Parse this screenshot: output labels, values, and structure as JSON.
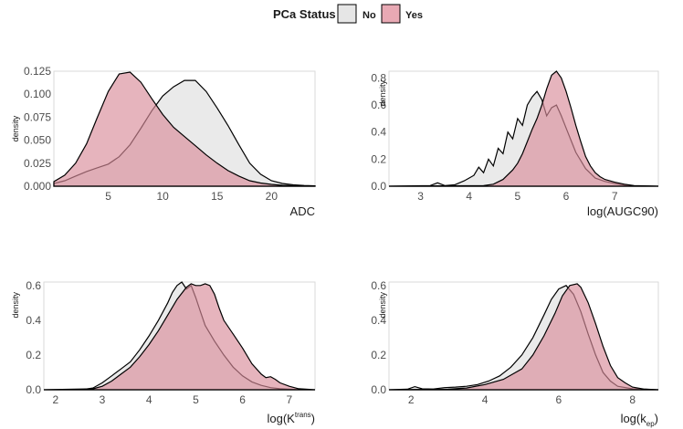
{
  "legend": {
    "title": "PCa Status",
    "items": [
      {
        "label": "No",
        "color": "#e6e6e6"
      },
      {
        "label": "Yes",
        "color": "#e8a9b4"
      }
    ]
  },
  "colors": {
    "no_fill": "#e6e6e6",
    "yes_fill": "#d98c9a",
    "stroke": "#000000",
    "panel_border": "#d9d9d9"
  },
  "chart_data": [
    {
      "type": "area",
      "xlabel": "ADC",
      "ylabel": "density",
      "xlim": [
        0,
        24
      ],
      "ylim": [
        0,
        0.125
      ],
      "xticks": [
        "5",
        "10",
        "15",
        "20"
      ],
      "xtick_values": [
        5,
        10,
        15,
        20
      ],
      "yticks": [
        "0.000",
        "0.025",
        "0.050",
        "0.075",
        "0.100",
        "0.125"
      ],
      "ytick_values": [
        0,
        0.025,
        0.05,
        0.075,
        0.1,
        0.125
      ],
      "series": [
        {
          "name": "No",
          "x": [
            0,
            1,
            2,
            3,
            4,
            5,
            6,
            7,
            8,
            9,
            10,
            11,
            12,
            13,
            14,
            15,
            16,
            17,
            18,
            19,
            20,
            21,
            22,
            23,
            24
          ],
          "y": [
            0.003,
            0.006,
            0.011,
            0.016,
            0.02,
            0.024,
            0.032,
            0.045,
            0.063,
            0.082,
            0.098,
            0.108,
            0.115,
            0.115,
            0.103,
            0.085,
            0.066,
            0.045,
            0.025,
            0.013,
            0.006,
            0.003,
            0.0015,
            0.0008,
            0.0004
          ]
        },
        {
          "name": "Yes",
          "x": [
            0,
            1,
            2,
            3,
            4,
            5,
            6,
            7,
            8,
            9,
            10,
            11,
            12,
            13,
            14,
            15,
            16,
            17,
            18,
            19,
            20,
            21,
            22,
            23,
            24
          ],
          "y": [
            0.005,
            0.012,
            0.025,
            0.046,
            0.075,
            0.103,
            0.122,
            0.124,
            0.113,
            0.095,
            0.078,
            0.064,
            0.054,
            0.044,
            0.034,
            0.025,
            0.017,
            0.011,
            0.006,
            0.0035,
            0.002,
            0.001,
            0.0005,
            0.0002,
            0.0001
          ]
        }
      ]
    },
    {
      "type": "area",
      "xlabel": "log(AUGC90)",
      "ylabel": "density",
      "xlim": [
        2.35,
        7.9
      ],
      "ylim": [
        0,
        0.85
      ],
      "xticks": [
        "3",
        "4",
        "5",
        "6",
        "7"
      ],
      "xtick_values": [
        3,
        4,
        5,
        6,
        7
      ],
      "yticks": [
        "0.0",
        "0.2",
        "0.4",
        "0.6",
        "0.8"
      ],
      "ytick_values": [
        0,
        0.2,
        0.4,
        0.6,
        0.8
      ],
      "series": [
        {
          "name": "No",
          "x": [
            2.35,
            3.2,
            3.35,
            3.5,
            3.7,
            3.9,
            4.0,
            4.1,
            4.2,
            4.3,
            4.4,
            4.5,
            4.6,
            4.7,
            4.8,
            4.9,
            5.0,
            5.1,
            5.2,
            5.3,
            5.4,
            5.5,
            5.6,
            5.7,
            5.8,
            5.9,
            6.0,
            6.1,
            6.2,
            6.4,
            6.6,
            6.8,
            7.0,
            7.2,
            7.4,
            7.9
          ],
          "y": [
            0,
            0.005,
            0.025,
            0.005,
            0.01,
            0.04,
            0.06,
            0.08,
            0.14,
            0.1,
            0.2,
            0.15,
            0.28,
            0.24,
            0.4,
            0.35,
            0.5,
            0.45,
            0.6,
            0.66,
            0.7,
            0.64,
            0.52,
            0.58,
            0.6,
            0.52,
            0.43,
            0.34,
            0.25,
            0.13,
            0.06,
            0.035,
            0.02,
            0.008,
            0.003,
            0
          ]
        },
        {
          "name": "Yes",
          "x": [
            2.35,
            4.3,
            4.5,
            4.7,
            4.9,
            5.0,
            5.1,
            5.2,
            5.3,
            5.4,
            5.5,
            5.6,
            5.7,
            5.8,
            5.9,
            6.0,
            6.1,
            6.2,
            6.3,
            6.4,
            6.5,
            6.6,
            6.7,
            6.8,
            7.0,
            7.2,
            7.4,
            7.9
          ],
          "y": [
            0,
            0.005,
            0.015,
            0.05,
            0.12,
            0.17,
            0.24,
            0.33,
            0.42,
            0.5,
            0.6,
            0.72,
            0.82,
            0.85,
            0.8,
            0.7,
            0.58,
            0.45,
            0.33,
            0.22,
            0.15,
            0.1,
            0.07,
            0.05,
            0.03,
            0.015,
            0.005,
            0
          ]
        }
      ]
    },
    {
      "type": "area",
      "xlabel_base": "log(K",
      "xlabel_sup": "trans",
      "xlabel_end": ")",
      "ylabel": "density",
      "xlim": [
        1.75,
        7.55
      ],
      "ylim": [
        0,
        0.62
      ],
      "xticks": [
        "2",
        "3",
        "4",
        "5",
        "6",
        "7"
      ],
      "xtick_values": [
        2,
        3,
        4,
        5,
        6,
        7
      ],
      "yticks": [
        "0.0",
        "0.2",
        "0.4",
        "0.6"
      ],
      "ytick_values": [
        0,
        0.2,
        0.4,
        0.6
      ],
      "series": [
        {
          "name": "No",
          "x": [
            1.75,
            2.6,
            2.8,
            3.0,
            3.2,
            3.4,
            3.6,
            3.8,
            4.0,
            4.2,
            4.4,
            4.5,
            4.6,
            4.7,
            4.8,
            4.9,
            5.0,
            5.1,
            5.2,
            5.4,
            5.6,
            5.8,
            6.0,
            6.2,
            6.4,
            6.6,
            6.8,
            7.0,
            7.2,
            7.55
          ],
          "y": [
            0,
            0.002,
            0.01,
            0.04,
            0.08,
            0.12,
            0.16,
            0.23,
            0.31,
            0.4,
            0.5,
            0.56,
            0.6,
            0.62,
            0.58,
            0.6,
            0.53,
            0.45,
            0.37,
            0.28,
            0.2,
            0.13,
            0.08,
            0.045,
            0.025,
            0.012,
            0.006,
            0.003,
            0.001,
            0
          ]
        },
        {
          "name": "Yes",
          "x": [
            1.75,
            2.8,
            3.0,
            3.2,
            3.4,
            3.6,
            3.8,
            4.0,
            4.2,
            4.4,
            4.6,
            4.8,
            4.9,
            5.0,
            5.1,
            5.2,
            5.3,
            5.4,
            5.5,
            5.6,
            5.8,
            6.0,
            6.2,
            6.4,
            6.5,
            6.6,
            6.7,
            6.8,
            7.0,
            7.2,
            7.55
          ],
          "y": [
            0,
            0.005,
            0.02,
            0.05,
            0.09,
            0.13,
            0.19,
            0.26,
            0.34,
            0.43,
            0.52,
            0.59,
            0.61,
            0.6,
            0.6,
            0.61,
            0.6,
            0.55,
            0.47,
            0.4,
            0.32,
            0.24,
            0.15,
            0.09,
            0.07,
            0.075,
            0.06,
            0.04,
            0.02,
            0.006,
            0
          ]
        }
      ]
    },
    {
      "type": "area",
      "xlabel_base": "log(k",
      "xlabel_sub": "ep",
      "xlabel_end": ")",
      "ylabel": "density",
      "xlim": [
        1.4,
        8.7
      ],
      "ylim": [
        0,
        0.62
      ],
      "xticks": [
        "2",
        "4",
        "6",
        "8"
      ],
      "xtick_values": [
        2,
        4,
        6,
        8
      ],
      "yticks": [
        "0.0",
        "0.2",
        "0.4",
        "0.6"
      ],
      "ytick_values": [
        0,
        0.2,
        0.4,
        0.6
      ],
      "series": [
        {
          "name": "No",
          "x": [
            1.4,
            1.9,
            2.1,
            2.3,
            2.6,
            2.9,
            3.2,
            3.5,
            3.8,
            4.1,
            4.4,
            4.7,
            5.0,
            5.3,
            5.6,
            5.8,
            6.0,
            6.2,
            6.4,
            6.6,
            6.8,
            7.0,
            7.2,
            7.4,
            7.6,
            8.0,
            8.7
          ],
          "y": [
            0,
            0.003,
            0.018,
            0.005,
            0.004,
            0.012,
            0.015,
            0.02,
            0.03,
            0.05,
            0.08,
            0.13,
            0.2,
            0.3,
            0.43,
            0.52,
            0.58,
            0.6,
            0.55,
            0.45,
            0.32,
            0.2,
            0.1,
            0.05,
            0.02,
            0.005,
            0
          ]
        },
        {
          "name": "Yes",
          "x": [
            1.4,
            3.0,
            3.5,
            4.0,
            4.5,
            5.0,
            5.3,
            5.6,
            5.9,
            6.1,
            6.3,
            6.5,
            6.6,
            6.8,
            7.0,
            7.2,
            7.4,
            7.6,
            7.8,
            8.0,
            8.3,
            8.7
          ],
          "y": [
            0,
            0.003,
            0.01,
            0.03,
            0.06,
            0.12,
            0.2,
            0.31,
            0.44,
            0.54,
            0.6,
            0.61,
            0.59,
            0.5,
            0.38,
            0.25,
            0.14,
            0.07,
            0.04,
            0.015,
            0.004,
            0
          ]
        }
      ]
    }
  ]
}
